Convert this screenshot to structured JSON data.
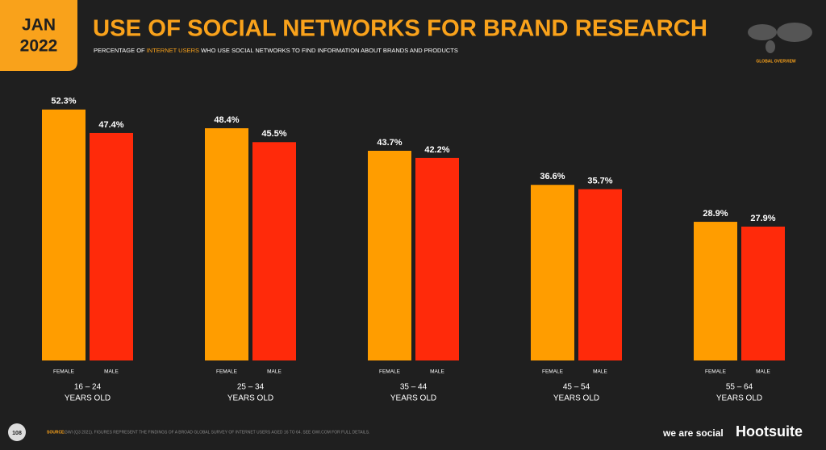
{
  "badge": {
    "month": "JAN",
    "year": "2022"
  },
  "global_overview": "GLOBAL OVERVIEW",
  "subtitle": {
    "before": "PERCENTAGE OF ",
    "highlight": "INTERNET USERS",
    "after": " WHO USE SOCIAL NETWORKS TO FIND INFORMATION ABOUT BRANDS AND PRODUCTS"
  },
  "footer": {
    "page": "108",
    "source_label": "SOURCE:",
    "source": "GWI (Q3 2021). FIGURES REPRESENT THE FINDINGS OF A BROAD GLOBAL SURVEY OF INTERNET USERS AGED 16 TO 64. SEE GWI.COM FOR FULL DETAILS.",
    "brand1": "we are social",
    "brand2": "Hootsuite"
  },
  "chart_data": {
    "type": "bar",
    "title": "USE OF SOCIAL NETWORKS FOR BRAND RESEARCH",
    "categories": [
      "16 – 24",
      "25 – 34",
      "35 – 44",
      "45 – 54",
      "55 – 64"
    ],
    "category_suffix": "YEARS OLD",
    "series": [
      {
        "name": "FEMALE",
        "color": "#ff9d00",
        "values": [
          52.3,
          48.4,
          43.7,
          36.6,
          28.9
        ],
        "value_labels": [
          "52.3%",
          "48.4%",
          "43.7%",
          "36.6%",
          "28.9%"
        ]
      },
      {
        "name": "MALE",
        "color": "#ff2a0a",
        "values": [
          47.4,
          45.5,
          42.2,
          35.7,
          27.9
        ],
        "value_labels": [
          "47.4%",
          "45.5%",
          "42.2%",
          "35.7%",
          "27.9%"
        ]
      }
    ],
    "ylim": [
      0,
      60
    ]
  }
}
